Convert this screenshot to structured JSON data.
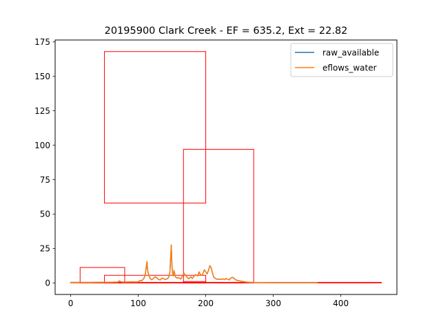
{
  "chart_data": {
    "type": "line",
    "title": "20195900 Clark Creek - EF = 635.2, Ext = 22.82",
    "xlabel": "",
    "ylabel": "",
    "xlim": [
      -23,
      483
    ],
    "ylim": [
      -8.4,
      176.4
    ],
    "xticks": [
      0,
      100,
      200,
      300,
      400
    ],
    "yticks": [
      0,
      25,
      50,
      75,
      100,
      125,
      150,
      175
    ],
    "grid": false,
    "legend_position": "top-right",
    "series": [
      {
        "name": "raw_available",
        "color": "#1f77b4",
        "x": [
          0,
          10,
          20,
          30,
          40,
          50,
          60,
          70,
          72,
          74,
          76,
          80,
          85,
          90,
          95,
          100,
          103,
          105,
          108,
          110,
          111,
          112,
          113,
          114,
          116,
          118,
          120,
          122,
          125,
          128,
          130,
          133,
          135,
          138,
          140,
          143,
          145,
          147,
          148,
          149,
          150,
          151,
          152,
          153,
          155,
          157,
          160,
          163,
          165,
          168,
          170,
          173,
          175,
          178,
          180,
          183,
          185,
          188,
          190,
          193,
          195,
          198,
          200,
          202,
          204,
          206,
          208,
          210,
          212,
          215,
          218,
          220,
          223,
          225,
          228,
          230,
          233,
          235,
          237,
          240,
          243,
          245,
          250,
          255,
          260,
          265,
          270,
          280,
          300,
          320,
          340,
          365
        ],
        "values": [
          0.3,
          0.3,
          0.3,
          0.3,
          0.4,
          0.4,
          0.5,
          0.6,
          1.5,
          0.9,
          0.7,
          0.6,
          0.7,
          0.8,
          0.7,
          0.8,
          1.8,
          1.5,
          3,
          5,
          8,
          12,
          15.5,
          9,
          5,
          3,
          2.2,
          3,
          4.5,
          3.5,
          2.5,
          2.2,
          3.5,
          3,
          2.5,
          3,
          4,
          8,
          18,
          27.5,
          12,
          7,
          5,
          9,
          4.5,
          3.5,
          3.8,
          2.8,
          4.5,
          7,
          5.5,
          3.8,
          3,
          4.5,
          3.2,
          5,
          6,
          5,
          8,
          5.5,
          6,
          9.5,
          8,
          6.5,
          9,
          12.5,
          11,
          7,
          4,
          3,
          2.5,
          2.8,
          2.5,
          3,
          2.3,
          3.2,
          2.5,
          2.2,
          3.5,
          4,
          2.8,
          2,
          1.5,
          1,
          0.6,
          0.4,
          0.3,
          0.25,
          0.2,
          0.2,
          0.2,
          0.2
        ],
        "linewidth": 1.5
      },
      {
        "name": "eflows_water",
        "color": "#ff7f0e",
        "x": [
          0,
          10,
          20,
          30,
          40,
          50,
          60,
          70,
          72,
          74,
          76,
          80,
          85,
          90,
          95,
          100,
          103,
          105,
          108,
          110,
          111,
          112,
          113,
          114,
          116,
          118,
          120,
          122,
          125,
          128,
          130,
          133,
          135,
          138,
          140,
          143,
          145,
          147,
          148,
          149,
          150,
          151,
          152,
          153,
          155,
          157,
          160,
          163,
          165,
          168,
          170,
          173,
          175,
          178,
          180,
          183,
          185,
          188,
          190,
          193,
          195,
          198,
          200,
          202,
          204,
          206,
          208,
          210,
          212,
          215,
          218,
          220,
          223,
          225,
          228,
          230,
          233,
          235,
          237,
          240,
          243,
          245,
          250,
          255,
          260,
          265,
          270,
          280,
          300,
          320,
          340,
          365
        ],
        "values": [
          0.3,
          0.3,
          0.3,
          0.3,
          0.4,
          0.4,
          0.5,
          0.6,
          1.5,
          0.9,
          0.7,
          0.6,
          0.7,
          0.8,
          0.7,
          0.8,
          1.8,
          1.5,
          3,
          5,
          8,
          12,
          15.5,
          9,
          5,
          3,
          2.2,
          3,
          4.5,
          3.5,
          2.5,
          2.2,
          3.5,
          3,
          2.5,
          3,
          4,
          8,
          18,
          27.5,
          12,
          7,
          5,
          9,
          4.5,
          3.5,
          3.8,
          2.8,
          4.5,
          7,
          5.5,
          3.8,
          3,
          4.5,
          3.2,
          5,
          6,
          5,
          8,
          5.5,
          6,
          9.5,
          8,
          6.5,
          9,
          12.5,
          11,
          7,
          4,
          3,
          2.5,
          2.8,
          2.5,
          3,
          2.3,
          3.2,
          2.5,
          2.2,
          3.5,
          4,
          2.8,
          2,
          1.5,
          1,
          0.6,
          0.4,
          0.3,
          0.25,
          0.2,
          0.2,
          0.2,
          0.2
        ],
        "linewidth": 1.5
      }
    ],
    "rectangles": [
      {
        "x0": 0,
        "x1": 460,
        "y0": 0,
        "y1": 0.4,
        "color": "#ff0000"
      },
      {
        "x0": 14,
        "x1": 80,
        "y0": 0,
        "y1": 11.2,
        "color": "#ff0000"
      },
      {
        "x0": 50,
        "x1": 200,
        "y0": 0,
        "y1": 5.5,
        "color": "#ff0000"
      },
      {
        "x0": 50,
        "x1": 200,
        "y0": 58,
        "y1": 168,
        "color": "#ff0000"
      },
      {
        "x0": 167,
        "x1": 200,
        "y0": 0,
        "y1": 1.0,
        "color": "#ff0000"
      },
      {
        "x0": 167,
        "x1": 271,
        "y0": 0,
        "y1": 97,
        "color": "#ff0000"
      }
    ]
  }
}
